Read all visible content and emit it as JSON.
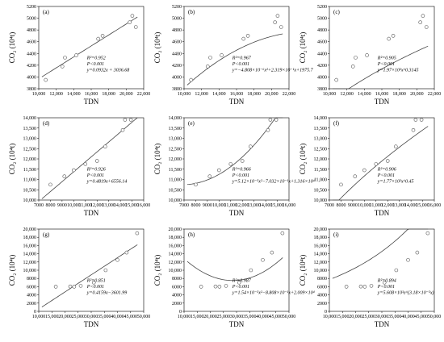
{
  "chart_data": [
    {
      "id": "a",
      "panel_label": "(a)",
      "type": "scatter",
      "xlabel": "TDN",
      "ylabel": "CO₂ (10⁴t)",
      "xlim": [
        10000,
        22000
      ],
      "ylim": [
        3800,
        5200
      ],
      "xticks": [
        "10,000",
        "12,000",
        "14,000",
        "16,000",
        "18,000",
        "20,000",
        "22,000"
      ],
      "yticks": [
        "3800",
        "4000",
        "4200",
        "4400",
        "4600",
        "4800",
        "5000",
        "5200"
      ],
      "points": [
        [
          10800,
          3950
        ],
        [
          12700,
          4180
        ],
        [
          13000,
          4330
        ],
        [
          14300,
          4370
        ],
        [
          16800,
          4650
        ],
        [
          17300,
          4700
        ],
        [
          20400,
          4930
        ],
        [
          20700,
          5040
        ],
        [
          21100,
          4850
        ]
      ],
      "fit": {
        "kind": "linear",
        "coef": [
          3036.68,
          0.0932
        ]
      },
      "annotations": [
        "R²=0.952",
        "P<0.001",
        "y=0.0932x + 3036.68"
      ]
    },
    {
      "id": "b",
      "panel_label": "(b)",
      "type": "scatter",
      "xlabel": "TDN",
      "ylabel": "CO₂ (10⁴t)",
      "xlim": [
        10000,
        22000
      ],
      "ylim": [
        3800,
        5200
      ],
      "xticks": [
        "10,000",
        "12,000",
        "14,000",
        "16,000",
        "18,000",
        "20,000",
        "22,000"
      ],
      "yticks": [
        "3800",
        "4000",
        "4200",
        "4400",
        "4600",
        "4800",
        "5000",
        "5200"
      ],
      "points": [
        [
          10800,
          3950
        ],
        [
          12700,
          4180
        ],
        [
          13000,
          4330
        ],
        [
          14300,
          4370
        ],
        [
          16800,
          4650
        ],
        [
          17300,
          4700
        ],
        [
          20400,
          4930
        ],
        [
          20700,
          5040
        ],
        [
          21100,
          4850
        ]
      ],
      "fit": {
        "kind": "poly",
        "coef": [
          1975.7,
          0.2319,
          -4.808e-06
        ]
      },
      "annotations": [
        "R²=0.967",
        "P<0.001",
        "y=−4.808×10⁻⁶x²+2.319×10⁻¹x+1975.7"
      ]
    },
    {
      "id": "c",
      "panel_label": "(c)",
      "type": "scatter",
      "xlabel": "TDN",
      "ylabel": "CO₂ (10⁴t)",
      "xlim": [
        10000,
        22000
      ],
      "ylim": [
        3800,
        5200
      ],
      "xticks": [
        "10,000",
        "12,000",
        "14,000",
        "16,000",
        "18,000",
        "20,000",
        "22,000"
      ],
      "yticks": [
        "3800",
        "4000",
        "4200",
        "4400",
        "4600",
        "4800",
        "5000",
        "5200"
      ],
      "points": [
        [
          10800,
          3950
        ],
        [
          12700,
          4180
        ],
        [
          13000,
          4330
        ],
        [
          14300,
          4370
        ],
        [
          16800,
          4650
        ],
        [
          17300,
          4700
        ],
        [
          20400,
          4930
        ],
        [
          20700,
          5040
        ],
        [
          21100,
          4850
        ]
      ],
      "fit": {
        "kind": "power",
        "coef": [
          197,
          0.3145
        ]
      },
      "annotations": [
        "R²=0.905",
        "P<0.001",
        "y=1.97×10²x^0.3145"
      ]
    },
    {
      "id": "d",
      "panel_label": "(d)",
      "type": "scatter",
      "xlabel": "TDN",
      "ylabel": "CO₂ (10⁴t)",
      "xlim": [
        7000,
        16000
      ],
      "ylim": [
        10000,
        14000
      ],
      "xticks": [
        "7000",
        "8000",
        "9000",
        "10,000",
        "11,000",
        "12,000",
        "13,000",
        "14,000",
        "15,000",
        "16,000"
      ],
      "yticks": [
        "10,000",
        "10,500",
        "11,000",
        "11,500",
        "12,000",
        "12,500",
        "13,000",
        "13,500",
        "14,000"
      ],
      "points": [
        [
          8000,
          10750
        ],
        [
          9200,
          11150
        ],
        [
          10000,
          11450
        ],
        [
          11000,
          11750
        ],
        [
          12000,
          11900
        ],
        [
          12700,
          12600
        ],
        [
          14200,
          13400
        ],
        [
          14400,
          13900
        ],
        [
          14900,
          13900
        ]
      ],
      "fit": {
        "kind": "linear",
        "coef": [
          6556.14,
          0.4819
        ]
      },
      "annotations": [
        "R²=0.926",
        "P<0.001",
        "y=0.4819x+6556.14"
      ]
    },
    {
      "id": "e",
      "panel_label": "(e)",
      "type": "scatter",
      "xlabel": "TDN",
      "ylabel": "CO₂ (10⁴t)",
      "xlim": [
        7000,
        16000
      ],
      "ylim": [
        10000,
        14000
      ],
      "xticks": [
        "7000",
        "8000",
        "9000",
        "10,000",
        "11,000",
        "12,000",
        "13,000",
        "14,000",
        "15,000",
        "16,000"
      ],
      "yticks": [
        "10,000",
        "10,500",
        "11,000",
        "11,500",
        "12,000",
        "12,500",
        "13,000",
        "13,500",
        "14,000"
      ],
      "points": [
        [
          8000,
          10750
        ],
        [
          9200,
          11150
        ],
        [
          10000,
          11450
        ],
        [
          11000,
          11750
        ],
        [
          12000,
          11900
        ],
        [
          12700,
          12600
        ],
        [
          14200,
          13400
        ],
        [
          14400,
          13900
        ],
        [
          14900,
          13900
        ]
      ],
      "fit": {
        "kind": "poly",
        "coef": [
          13160,
          -0.7032,
          5.12e-05
        ]
      },
      "annotations": [
        "R²=0.966",
        "P<0.001",
        "y=5.12×10⁻⁵x²−7.032×10⁻¹x+1.316×10⁴"
      ]
    },
    {
      "id": "f",
      "panel_label": "(f)",
      "type": "scatter",
      "xlabel": "TDN",
      "ylabel": "CO₂ (10⁴t)",
      "xlim": [
        7000,
        16000
      ],
      "ylim": [
        10000,
        14000
      ],
      "xticks": [
        "7000",
        "8000",
        "9000",
        "10,000",
        "11,000",
        "12,000",
        "13,000",
        "14,000",
        "15,000",
        "16,000"
      ],
      "yticks": [
        "10,000",
        "10,500",
        "11,000",
        "11,500",
        "12,000",
        "12,500",
        "13,000",
        "13,500",
        "14,000"
      ],
      "points": [
        [
          8000,
          10750
        ],
        [
          9200,
          11150
        ],
        [
          10000,
          11450
        ],
        [
          11000,
          11750
        ],
        [
          12000,
          11900
        ],
        [
          12700,
          12600
        ],
        [
          14200,
          13400
        ],
        [
          14400,
          13900
        ],
        [
          14900,
          13900
        ]
      ],
      "fit": {
        "kind": "power",
        "coef": [
          177,
          0.45
        ]
      },
      "annotations": [
        "R²=0.906",
        "P<0.001",
        "y=1.77×10²x^0.45"
      ]
    },
    {
      "id": "g",
      "panel_label": "(g)",
      "type": "scatter",
      "xlabel": "TDN",
      "ylabel": "CO₂ (10⁴t)",
      "xlim": [
        10000,
        50000
      ],
      "ylim": [
        0,
        20000
      ],
      "xticks": [
        "10,000",
        "15,000",
        "20,000",
        "25,000",
        "30,000",
        "35,000",
        "40,000",
        "45,000",
        "50,000"
      ],
      "yticks": [
        "0",
        "2000",
        "4000",
        "6000",
        "8000",
        "10,000",
        "12,000",
        "14,000",
        "16,000",
        "18,000",
        "20,000"
      ],
      "points": [
        [
          16500,
          6000
        ],
        [
          22000,
          6050
        ],
        [
          23500,
          6000
        ],
        [
          26000,
          6200
        ],
        [
          31000,
          7000
        ],
        [
          35500,
          10000
        ],
        [
          40000,
          12500
        ],
        [
          43500,
          14300
        ],
        [
          47500,
          19000
        ]
      ],
      "fit": {
        "kind": "linear",
        "coef": [
          -3601.99,
          0.4159
        ]
      },
      "annotations": [
        "R²=0.851",
        "P<0.001",
        "y=0.4159x−3601.99"
      ]
    },
    {
      "id": "h",
      "panel_label": "(h)",
      "type": "scatter",
      "xlabel": "TDN",
      "ylabel": "CO₂ (10⁴t)",
      "xlim": [
        10000,
        50000
      ],
      "ylim": [
        0,
        20000
      ],
      "xticks": [
        "10,000",
        "15,000",
        "20,000",
        "25,000",
        "30,000",
        "35,000",
        "40,000",
        "45,000",
        "50,000"
      ],
      "yticks": [
        "0",
        "2000",
        "4000",
        "6000",
        "8000",
        "10,000",
        "12,000",
        "14,000",
        "16,000",
        "18,000",
        "20,000"
      ],
      "points": [
        [
          16500,
          6000
        ],
        [
          22000,
          6050
        ],
        [
          23500,
          6000
        ],
        [
          26000,
          6200
        ],
        [
          31000,
          7000
        ],
        [
          35500,
          10000
        ],
        [
          40000,
          12500
        ],
        [
          43500,
          14300
        ],
        [
          47500,
          19000
        ]
      ],
      "fit": {
        "kind": "poly",
        "coef": [
          20090,
          -0.8808,
          1.54e-05
        ]
      },
      "annotations": [
        "R²=0.987",
        "P<0.001",
        "y=1.54×10⁻⁵x²−8.808×10⁻¹x+2.009×10⁴"
      ]
    },
    {
      "id": "i",
      "panel_label": "(i)",
      "type": "scatter",
      "xlabel": "TDN",
      "ylabel": "CO₂ (10⁴t)",
      "xlim": [
        10000,
        50000
      ],
      "ylim": [
        0,
        20000
      ],
      "xticks": [
        "10,000",
        "15,000",
        "20,000",
        "25,000",
        "30,000",
        "35,000",
        "40,000",
        "45,000",
        "50,000"
      ],
      "yticks": [
        "0",
        "2000",
        "4000",
        "6000",
        "8000",
        "10,000",
        "12,000",
        "14,000",
        "16,000",
        "18,000",
        "20,000"
      ],
      "points": [
        [
          16500,
          6000
        ],
        [
          22000,
          6050
        ],
        [
          23500,
          6000
        ],
        [
          26000,
          6200
        ],
        [
          31000,
          7000
        ],
        [
          35500,
          10000
        ],
        [
          40000,
          12500
        ],
        [
          43500,
          14300
        ],
        [
          47500,
          19000
        ]
      ],
      "fit": {
        "kind": "exp",
        "coef": [
          5608,
          3.18e-05
        ]
      },
      "annotations": [
        "R²=0.894",
        "P<0.001",
        "y=5.608×10³e^(3.18×10⁻⁵x)"
      ]
    }
  ]
}
